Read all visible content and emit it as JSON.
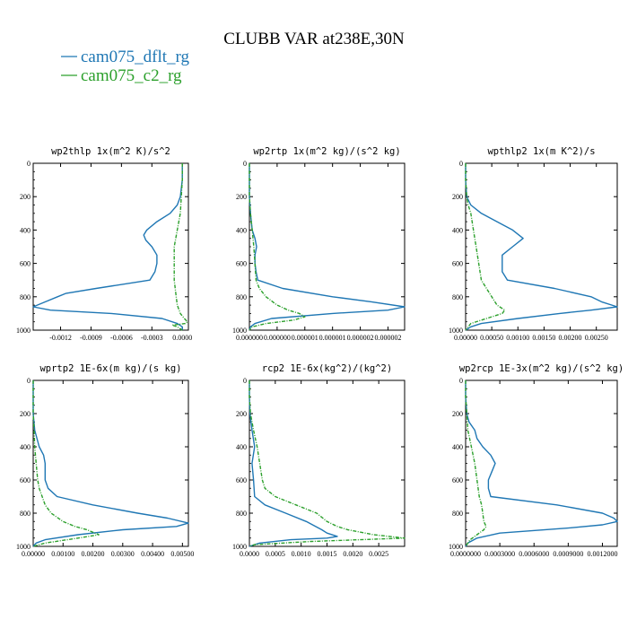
{
  "header": {
    "title": "CLUBB VAR at238E,30N",
    "legend": [
      {
        "label": "cam075_dflt_rg",
        "color": "#1f77b4",
        "style": "solid"
      },
      {
        "label": "cam075_c2_rg",
        "color": "#2ca02c",
        "style": "dashed"
      }
    ]
  },
  "chart_data": [
    {
      "type": "line",
      "title": "wp2thlp  1x(m^2 K)/s^2",
      "ylim": [
        1000,
        0
      ],
      "yticks": [
        "0",
        "200",
        "400",
        "600",
        "800",
        "1000"
      ],
      "xlim": [
        -0.00147,
        6e-05
      ],
      "xticks": [
        "-0.0012",
        "-0.0009",
        "-0.0006",
        "-0.0003",
        "0.0000"
      ],
      "xtick_values": [
        -0.0012,
        -0.0009,
        -0.0006,
        -0.0003,
        0.0
      ],
      "series": [
        {
          "name": "cam075_dflt_rg",
          "y": [
            0,
            100,
            200,
            250,
            300,
            350,
            400,
            430,
            460,
            500,
            550,
            600,
            650,
            700,
            750,
            780,
            800,
            830,
            860,
            880,
            900,
            930,
            960,
            980,
            1000
          ],
          "x": [
            0,
            0,
            -2e-05,
            -5e-05,
            -0.00012,
            -0.00025,
            -0.00035,
            -0.00038,
            -0.00036,
            -0.0003,
            -0.00025,
            -0.00025,
            -0.00027,
            -0.00032,
            -0.00085,
            -0.00115,
            -0.00123,
            -0.00135,
            -0.00147,
            -0.0013,
            -0.0007,
            -0.0002,
            -5e-05,
            0,
            0
          ]
        },
        {
          "name": "cam075_c2_rg",
          "y": [
            0,
            100,
            200,
            300,
            400,
            500,
            600,
            700,
            750,
            800,
            850,
            900,
            930,
            950,
            960,
            970,
            980,
            1000
          ],
          "x": [
            0,
            0,
            -1e-05,
            -2e-05,
            -5e-05,
            -8e-05,
            -8e-05,
            -8e-05,
            -7e-05,
            -6e-05,
            -5e-05,
            -2e-05,
            2e-05,
            5e-05,
            3e-05,
            -0.0001,
            -5e-05,
            0
          ]
        }
      ]
    },
    {
      "type": "line",
      "title": "wp2rtp  1x(m^2 kg)/(s^2 kg)",
      "ylim": [
        1000,
        0
      ],
      "yticks": [
        "0",
        "200",
        "400",
        "600",
        "800",
        "1000"
      ],
      "xlim": [
        0,
        2.8e-06
      ],
      "xticks": [
        "0.000000",
        "0.000000",
        "0.000001",
        "0.000001",
        "0.000002",
        "0.000002"
      ],
      "xtick_values": [
        0,
        5e-07,
        1e-06,
        1.5e-06,
        2e-06,
        2.5e-06
      ],
      "series": [
        {
          "name": "cam075_dflt_rg",
          "y": [
            0,
            100,
            200,
            300,
            400,
            450,
            500,
            550,
            600,
            650,
            700,
            750,
            800,
            830,
            860,
            880,
            900,
            930,
            960,
            980,
            1000
          ],
          "x": [
            0,
            0,
            0,
            2e-08,
            5e-08,
            1e-07,
            1.3e-07,
            1e-07,
            1e-07,
            1.2e-07,
            1.5e-07,
            6e-07,
            1.5e-06,
            2.2e-06,
            2.8e-06,
            2.5e-06,
            1.5e-06,
            4e-07,
            1e-07,
            2e-08,
            0
          ]
        },
        {
          "name": "cam075_c2_rg",
          "y": [
            0,
            100,
            200,
            300,
            400,
            500,
            600,
            700,
            750,
            800,
            850,
            880,
            900,
            920,
            940,
            960,
            980,
            1000
          ],
          "x": [
            0,
            0,
            0,
            2e-08,
            5e-08,
            8e-08,
            1e-07,
            1.2e-07,
            1.8e-07,
            3e-07,
            5e-07,
            7e-07,
            9e-07,
            1e-06,
            8e-07,
            3e-07,
            5e-08,
            0
          ]
        }
      ]
    },
    {
      "type": "line",
      "title": "wpthlp2  1x(m K^2)/s",
      "ylim": [
        1000,
        0
      ],
      "yticks": [
        "0",
        "200",
        "400",
        "600",
        "800",
        "1000"
      ],
      "xlim": [
        0,
        0.0029
      ],
      "xticks": [
        "0.00000",
        "0.00050",
        "0.00100",
        "0.00150",
        "0.00200",
        "0.00250"
      ],
      "xtick_values": [
        0,
        0.0005,
        0.001,
        0.0015,
        0.002,
        0.0025
      ],
      "series": [
        {
          "name": "cam075_dflt_rg",
          "y": [
            0,
            100,
            200,
            250,
            300,
            350,
            400,
            450,
            500,
            550,
            600,
            650,
            700,
            750,
            800,
            830,
            860,
            880,
            900,
            930,
            960,
            980,
            1000
          ],
          "x": [
            0,
            0,
            2e-05,
            0.0001,
            0.0003,
            0.0006,
            0.0009,
            0.0011,
            0.0009,
            0.0007,
            0.0007,
            0.0007,
            0.0008,
            0.0017,
            0.0024,
            0.0026,
            0.0029,
            0.0024,
            0.0018,
            0.001,
            0.0003,
            0.0001,
            0
          ]
        },
        {
          "name": "cam075_c2_rg",
          "y": [
            0,
            100,
            200,
            250,
            300,
            400,
            500,
            600,
            700,
            750,
            800,
            850,
            880,
            900,
            930,
            960,
            1000
          ],
          "x": [
            0,
            0,
            2e-05,
            5e-05,
            0.0001,
            0.00015,
            0.0002,
            0.00025,
            0.0003,
            0.0004,
            0.0005,
            0.0006,
            0.00075,
            0.0007,
            0.0004,
            0.0001,
            0
          ]
        }
      ]
    },
    {
      "type": "line",
      "title": "wprtp2  1E-6x(m kg)/(s kg)",
      "ylim": [
        1000,
        0
      ],
      "yticks": [
        "0",
        "200",
        "400",
        "600",
        "800",
        "1000"
      ],
      "xlim": [
        0,
        0.0052
      ],
      "xticks": [
        "0.00000",
        "0.00100",
        "0.00200",
        "0.00300",
        "0.00400",
        "0.00500"
      ],
      "xtick_values": [
        0,
        0.001,
        0.002,
        0.003,
        0.004,
        0.005
      ],
      "series": [
        {
          "name": "cam075_dflt_rg",
          "y": [
            0,
            100,
            200,
            300,
            400,
            450,
            500,
            550,
            600,
            650,
            700,
            750,
            800,
            830,
            860,
            880,
            900,
            930,
            960,
            980,
            1000
          ],
          "x": [
            0,
            0,
            0,
            5e-05,
            0.0002,
            0.00035,
            0.0004,
            0.0004,
            0.0004,
            0.0005,
            0.0008,
            0.002,
            0.0035,
            0.0045,
            0.0052,
            0.0048,
            0.003,
            0.0015,
            0.0004,
            0.0001,
            0
          ]
        },
        {
          "name": "cam075_c2_rg",
          "y": [
            0,
            100,
            200,
            300,
            400,
            500,
            600,
            650,
            700,
            750,
            800,
            850,
            880,
            900,
            930,
            950,
            980,
            1000
          ],
          "x": [
            0,
            0,
            0,
            3e-05,
            5e-05,
            0.0001,
            0.00015,
            0.0002,
            0.0003,
            0.0004,
            0.0006,
            0.001,
            0.0014,
            0.0018,
            0.0022,
            0.0015,
            0.0004,
            0
          ]
        }
      ]
    },
    {
      "type": "line",
      "title": "rcp2  1E-6x(kg^2)/(kg^2)",
      "ylim": [
        1000,
        0
      ],
      "yticks": [
        "0",
        "200",
        "400",
        "600",
        "800",
        "1000"
      ],
      "xlim": [
        0,
        0.003
      ],
      "xticks": [
        "0.0000",
        "0.0005",
        "0.0010",
        "0.0015",
        "0.0020",
        "0.0025"
      ],
      "xtick_values": [
        0,
        0.0005,
        0.001,
        0.0015,
        0.002,
        0.0025
      ],
      "series": [
        {
          "name": "cam075_dflt_rg",
          "y": [
            0,
            100,
            200,
            300,
            400,
            500,
            600,
            700,
            750,
            800,
            850,
            900,
            920,
            940,
            950,
            960,
            980,
            1000
          ],
          "x": [
            0,
            0,
            1e-05,
            5e-05,
            0.0001,
            5e-05,
            8e-05,
            0.0001,
            0.0003,
            0.0007,
            0.0011,
            0.0014,
            0.0015,
            0.0017,
            0.0015,
            0.0008,
            0.0002,
            0
          ]
        },
        {
          "name": "cam075_c2_rg",
          "y": [
            0,
            100,
            200,
            300,
            400,
            500,
            600,
            650,
            700,
            750,
            800,
            850,
            880,
            900,
            930,
            950,
            970,
            990,
            1000
          ],
          "x": [
            0,
            0,
            2e-05,
            8e-05,
            0.00015,
            0.0002,
            0.00025,
            0.0003,
            0.0005,
            0.0009,
            0.0013,
            0.0015,
            0.0017,
            0.0019,
            0.0024,
            0.003,
            0.0012,
            0.0001,
            0
          ]
        }
      ]
    },
    {
      "type": "line",
      "title": "wp2rcp  1E-3x(m^2 kg)/(s^2 kg)",
      "ylim": [
        1000,
        0
      ],
      "yticks": [
        "0",
        "200",
        "400",
        "600",
        "800",
        "1000"
      ],
      "xlim": [
        0,
        0.00133
      ],
      "xticks": [
        "0.0000000",
        "0.0003000",
        "0.0006000",
        "0.0009000",
        "0.0012000"
      ],
      "xtick_values": [
        0,
        0.0003,
        0.0006,
        0.0009,
        0.0012
      ],
      "series": [
        {
          "name": "cam075_dflt_rg",
          "y": [
            0,
            100,
            200,
            250,
            300,
            350,
            400,
            450,
            500,
            550,
            600,
            650,
            700,
            750,
            800,
            830,
            850,
            870,
            890,
            920,
            950,
            980,
            1000
          ],
          "x": [
            0,
            0,
            1e-05,
            3e-05,
            8e-05,
            0.0001,
            0.00015,
            0.00022,
            0.00026,
            0.00023,
            0.0002,
            0.0002,
            0.00022,
            0.0008,
            0.0012,
            0.0013,
            0.00133,
            0.0012,
            0.0009,
            0.0003,
            0.0001,
            2e-05,
            0
          ]
        },
        {
          "name": "cam075_c2_rg",
          "y": [
            0,
            100,
            200,
            300,
            400,
            500,
            600,
            700,
            750,
            800,
            850,
            880,
            900,
            930,
            960,
            1000
          ],
          "x": [
            0,
            0,
            1e-05,
            2e-05,
            5e-05,
            8e-05,
            0.0001,
            0.00012,
            0.00014,
            0.00015,
            0.00016,
            0.00018,
            0.00016,
            0.0001,
            4e-05,
            0
          ]
        }
      ]
    }
  ]
}
